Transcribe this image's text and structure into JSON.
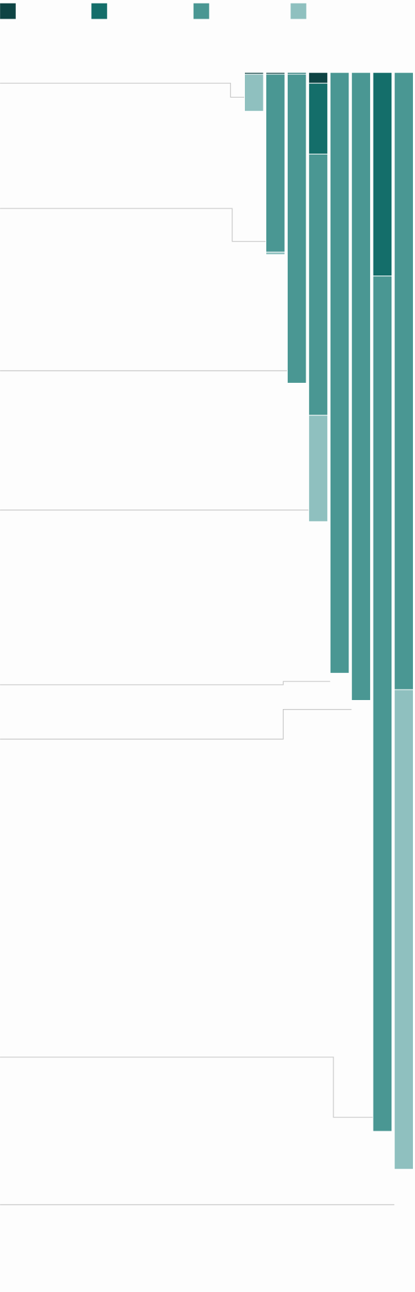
{
  "chart_data": {
    "type": "stacked-bar",
    "categories": [
      null,
      null,
      null,
      null,
      null,
      null,
      null,
      null
    ],
    "series": [
      {
        "color": "#0e4444",
        "values": [
          2,
          2,
          0,
          13,
          0,
          0,
          0,
          0
        ]
      },
      {
        "color": "#146e6a",
        "values": [
          0,
          0,
          2,
          86,
          0,
          0,
          247,
          0
        ]
      },
      {
        "color": "#4a9793",
        "values": [
          0,
          216,
          375,
          317,
          729,
          762,
          1038,
          749
        ]
      },
      {
        "color": "#8fc0bf",
        "values": [
          45,
          3,
          0,
          129,
          0,
          0,
          0,
          582
        ]
      }
    ]
  }
}
